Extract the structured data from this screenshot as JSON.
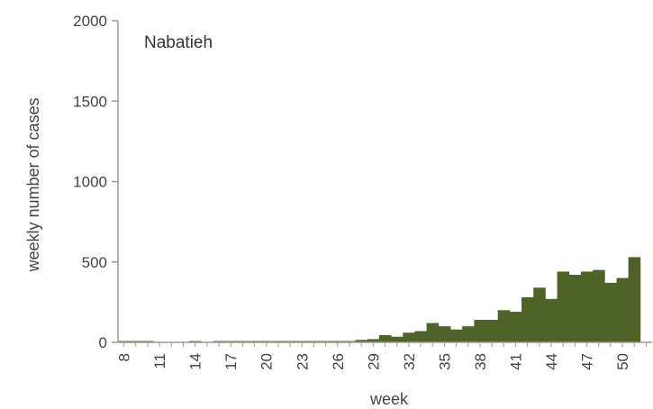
{
  "chart_data": {
    "type": "bar",
    "title": "Nabatieh",
    "xlabel": "week",
    "ylabel": "weekly number of cases",
    "ylim": [
      0,
      2000
    ],
    "yticks": [
      0,
      500,
      1000,
      1500,
      2000
    ],
    "xtick_labels": [
      "8",
      "11",
      "14",
      "17",
      "20",
      "23",
      "26",
      "29",
      "32",
      "35",
      "38",
      "41",
      "44",
      "47",
      "50"
    ],
    "bar_color": "#4f6228",
    "categories": [
      8,
      9,
      10,
      11,
      12,
      13,
      14,
      15,
      16,
      17,
      18,
      19,
      20,
      21,
      22,
      23,
      24,
      25,
      26,
      27,
      28,
      29,
      30,
      31,
      32,
      33,
      34,
      35,
      36,
      37,
      38,
      39,
      40,
      41,
      42,
      43,
      44,
      45,
      46,
      47,
      48,
      49,
      50,
      51,
      52
    ],
    "values": [
      8,
      8,
      8,
      0,
      0,
      0,
      8,
      0,
      8,
      8,
      8,
      8,
      8,
      8,
      8,
      8,
      8,
      8,
      8,
      8,
      15,
      20,
      45,
      35,
      60,
      70,
      120,
      100,
      80,
      100,
      140,
      140,
      200,
      190,
      280,
      340,
      270,
      440,
      420,
      440,
      450,
      370,
      400,
      530,
      0
    ]
  }
}
